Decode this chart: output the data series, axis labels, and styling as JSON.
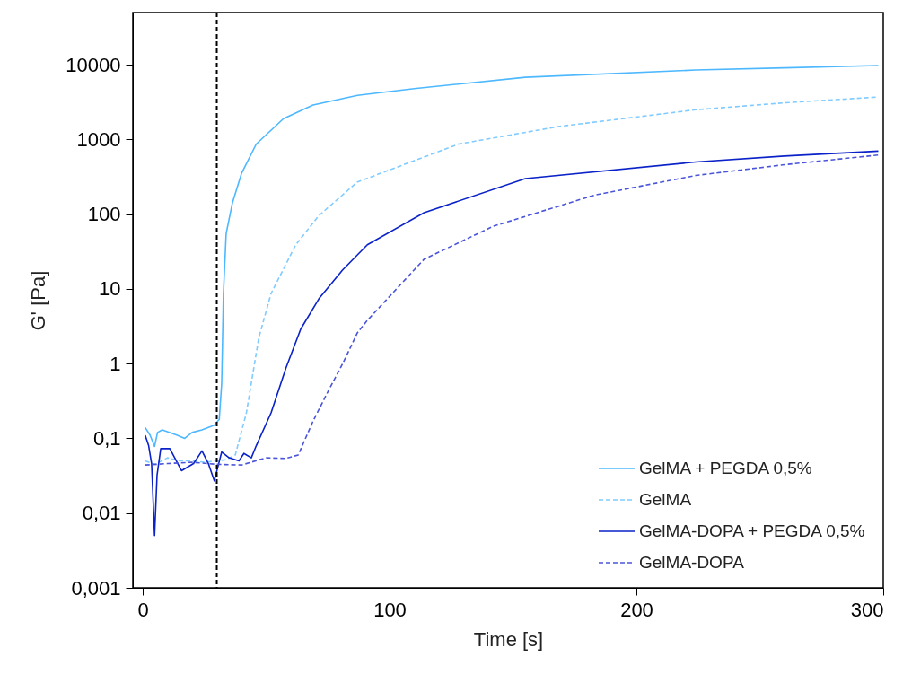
{
  "chart_data": {
    "type": "line",
    "xlabel": "Time [s]",
    "ylabel": "G' [Pa]",
    "log": "y",
    "xlim": [
      -4,
      300
    ],
    "xticks": [
      0,
      100,
      200,
      300
    ],
    "ylim": [
      0.001,
      50000
    ],
    "yticks": [
      {
        "value": 0.001,
        "label": "0,001"
      },
      {
        "value": 0.01,
        "label": "0,01"
      },
      {
        "value": 0.1,
        "label": "0,1"
      },
      1,
      10,
      100,
      1000,
      10000
    ],
    "legend": "bottom right",
    "marker": "none",
    "series": [
      {
        "name": "GelMA + PEGDA 0,5%",
        "color": "#4db8ff",
        "line_style": "solid",
        "x": [
          1,
          3,
          4.8,
          6,
          7.9,
          11,
          14,
          17,
          20,
          24,
          29,
          31,
          32,
          32.7,
          33.8,
          36.3,
          40,
          46,
          57,
          69,
          87,
          110,
          155,
          224,
          260,
          298
        ],
        "values": [
          0.14,
          0.11,
          0.078,
          0.12,
          0.13,
          0.12,
          0.11,
          0.1,
          0.12,
          0.13,
          0.15,
          0.18,
          0.55,
          8.7,
          55,
          140,
          350,
          870,
          1900,
          2900,
          3900,
          4800,
          6800,
          8500,
          9100,
          9800
        ]
      },
      {
        "name": "GelMA",
        "color": "#80cbff",
        "line_style": "dashed",
        "x": [
          1,
          5,
          10,
          15,
          20,
          25,
          30,
          34,
          37.5,
          42,
          47,
          52,
          62,
          71.4,
          87,
          128,
          169,
          224,
          260,
          298
        ],
        "values": [
          0.05,
          0.045,
          0.055,
          0.05,
          0.05,
          0.048,
          0.05,
          0.052,
          0.06,
          0.22,
          2.2,
          8.7,
          39,
          96,
          270,
          870,
          1500,
          2500,
          3100,
          3700
        ]
      },
      {
        "name": "GelMA-DOPA + PEGDA 0,5%",
        "color": "#0a22c8",
        "line_style": "solid",
        "x": [
          1,
          2.4,
          3.6,
          4.8,
          5.8,
          7.3,
          11,
          15.7,
          20.6,
          24,
          26.6,
          29,
          32,
          35,
          39,
          41,
          44,
          46,
          52,
          58,
          64,
          71.4,
          81,
          91,
          114,
          155,
          224,
          260,
          298
        ],
        "values": [
          0.11,
          0.08,
          0.046,
          0.005,
          0.032,
          0.073,
          0.073,
          0.037,
          0.046,
          0.068,
          0.046,
          0.027,
          0.066,
          0.055,
          0.05,
          0.063,
          0.055,
          0.08,
          0.22,
          0.87,
          2.9,
          7.4,
          18,
          39,
          105,
          300,
          500,
          600,
          700
        ]
      },
      {
        "name": "GelMA-DOPA",
        "color": "#4a55d9",
        "line_style": "dashed",
        "x": [
          1,
          10,
          20,
          30,
          40,
          50,
          58,
          63,
          69,
          75,
          81,
          87,
          91,
          114,
          142,
          183,
          224,
          260,
          298
        ],
        "values": [
          0.044,
          0.046,
          0.048,
          0.045,
          0.044,
          0.055,
          0.054,
          0.06,
          0.17,
          0.42,
          1,
          2.6,
          3.8,
          25,
          69,
          180,
          330,
          460,
          620
        ]
      }
    ],
    "ref_lines": [
      {
        "axis": "x",
        "value": 30,
        "color": "#000000",
        "line_style": "dashed"
      }
    ]
  }
}
